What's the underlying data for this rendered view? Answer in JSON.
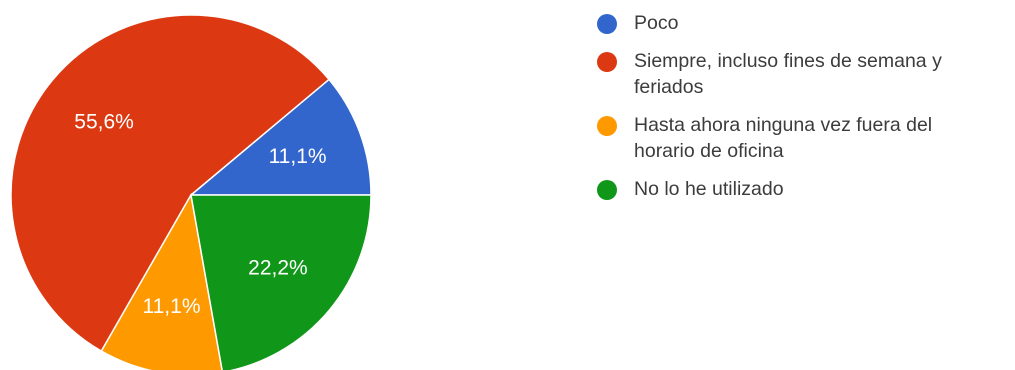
{
  "chart_data": {
    "type": "pie",
    "title": "",
    "start_angle_deg": 90,
    "direction": "counterclockwise",
    "slices": [
      {
        "label": "Poco",
        "value": 11.1,
        "display": "11,1%",
        "color": "#3366cc"
      },
      {
        "label": "Siempre, incluso fines de semana y feriados",
        "value": 55.6,
        "display": "55,6%",
        "color": "#dc3912"
      },
      {
        "label": "Hasta ahora ninguna vez fuera del horario de oficina",
        "value": 11.1,
        "display": "11,1%",
        "color": "#ff9900"
      },
      {
        "label": "No lo he utilizado",
        "value": 22.2,
        "display": "22,2%",
        "color": "#109618"
      }
    ],
    "legend": {
      "position": "right",
      "items": [
        {
          "line1": "Poco",
          "line2": ""
        },
        {
          "line1": "Siempre, incluso fines de semana y",
          "line2": "feriados"
        },
        {
          "line1": "Hasta ahora ninguna vez fuera del",
          "line2": "horario de oficina"
        },
        {
          "line1": "No lo he utilizado",
          "line2": ""
        }
      ]
    }
  }
}
